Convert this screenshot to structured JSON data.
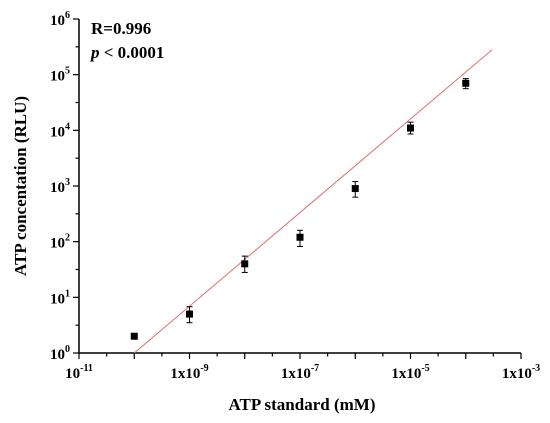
{
  "chart_data": {
    "type": "scatter",
    "title": "",
    "xlabel": "ATP standard (mM)",
    "ylabel": "ATP concentation (RLU)",
    "x_scale": "log",
    "y_scale": "log",
    "xlim": [
      1e-11,
      0.001
    ],
    "ylim": [
      1,
      1000000
    ],
    "x_ticks": [
      {
        "value": 1e-11,
        "base": "10",
        "exp": "-11"
      },
      {
        "value": 1e-09,
        "base": "1x10",
        "exp": "-9"
      },
      {
        "value": 1e-07,
        "base": "1x10",
        "exp": "-7"
      },
      {
        "value": 1e-05,
        "base": "1x10",
        "exp": "-5"
      },
      {
        "value": 0.001,
        "base": "1x10",
        "exp": "-3"
      }
    ],
    "y_ticks": [
      {
        "value": 1,
        "base": "10",
        "exp": "0"
      },
      {
        "value": 10,
        "base": "10",
        "exp": "1"
      },
      {
        "value": 100,
        "base": "10",
        "exp": "2"
      },
      {
        "value": 1000,
        "base": "10",
        "exp": "3"
      },
      {
        "value": 10000,
        "base": "10",
        "exp": "4"
      },
      {
        "value": 100000,
        "base": "10",
        "exp": "5"
      },
      {
        "value": 1000000,
        "base": "10",
        "exp": "6"
      }
    ],
    "points": [
      {
        "x": 1e-10,
        "y": 2,
        "err_low": 2,
        "err_high": 2
      },
      {
        "x": 1e-09,
        "y": 5,
        "err_low": 3.5,
        "err_high": 6.8
      },
      {
        "x": 1e-08,
        "y": 40,
        "err_low": 28,
        "err_high": 55
      },
      {
        "x": 1e-07,
        "y": 120,
        "err_low": 82,
        "err_high": 160
      },
      {
        "x": 1e-06,
        "y": 900,
        "err_low": 630,
        "err_high": 1200
      },
      {
        "x": 1e-05,
        "y": 11000,
        "err_low": 8600,
        "err_high": 14000
      },
      {
        "x": 0.0001,
        "y": 70000,
        "err_low": 56000,
        "err_high": 85000
      }
    ],
    "fit_line": {
      "x_start": 1e-10,
      "y_start": 1,
      "x_end": 0.0003,
      "y_end": 280000,
      "color": "#e07070"
    },
    "marker_color": "#000000",
    "grid": false,
    "annotations": {
      "r_label": "R=0.996",
      "p_symbol": "p",
      "p_rest": " < 0.0001"
    }
  }
}
